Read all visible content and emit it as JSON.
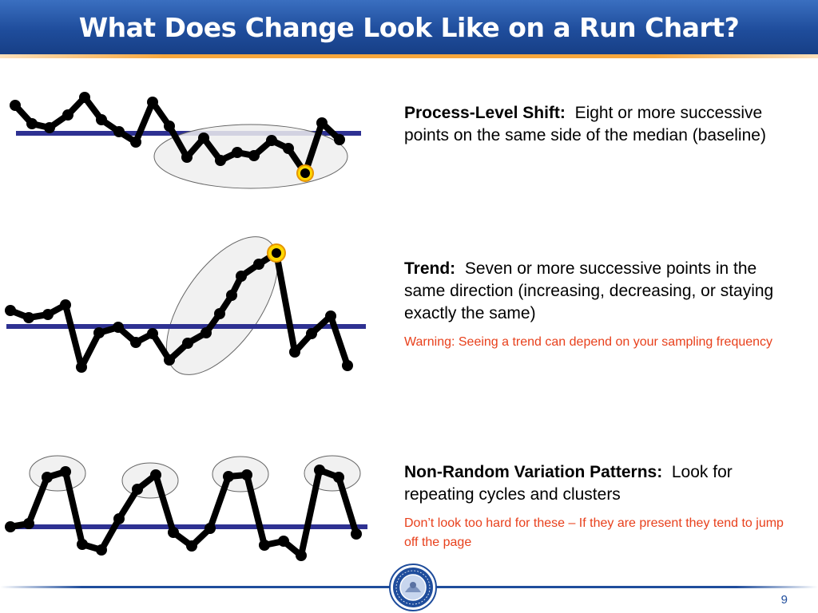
{
  "slide": {
    "title": "What Does Change Look Like on a Run Chart?",
    "page_number": "9"
  },
  "sections": [
    {
      "heading": "Process-Level Shift:",
      "body": "Eight or more successive points on the same side of the median (baseline)",
      "warning": ""
    },
    {
      "heading": "Trend:",
      "body": "Seven or more successive points in the same direction (increasing, decreasing, or staying exactly the same)",
      "warning": "Warning:  Seeing a trend can depend on your sampling frequency"
    },
    {
      "heading": "Non-Random Variation Patterns:",
      "body": "Look for repeating cycles and clusters",
      "warning": "Don’t look too hard for these – If they are present they tend to jump off the page"
    }
  ],
  "colors": {
    "title_bar": "#1f4d9c",
    "accent_rule": "#f7a73d",
    "median_line": "#2e3192",
    "data_line": "#000000",
    "highlight_point": "#ffd700",
    "warning_text": "#e8401c"
  },
  "icons": {
    "footer_seal": "auditor-of-state-washington-seal"
  }
}
